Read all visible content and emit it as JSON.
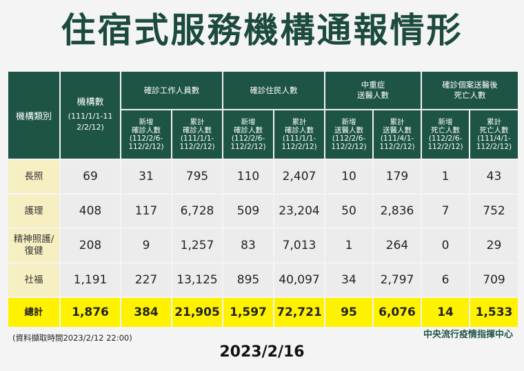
{
  "title": "住宿式服務機構通報情形",
  "header": {
    "category": "機構類別",
    "count_title": "機構數",
    "count_range": "(111/1/1-112/2/12)",
    "groups": [
      "確診工作人員數",
      "確診住民人數",
      "中重症\n送醫人數",
      "確診個案送醫後\n死亡人數"
    ],
    "subs": [
      "新增\n確診人數\n(112/2/6-\n112/2/12)",
      "累計\n確診人數\n(111/1/1-\n112/2/12)",
      "新增\n確診人數\n(112/2/6-\n112/2/12)",
      "累計\n確診人數\n(111/1/1-\n112/2/12)",
      "新增\n送醫人數\n(112/2/6-\n112/2/12)",
      "累計\n送醫人數\n(111/4/1-\n112/2/12)",
      "新增\n死亡人數\n(112/2/6-\n112/2/12)",
      "累計\n死亡人數\n(111/4/1-\n112/2/12)"
    ]
  },
  "rows": [
    {
      "label": "長照",
      "values": [
        "69",
        "31",
        "795",
        "110",
        "2,407",
        "10",
        "179",
        "1",
        "43"
      ]
    },
    {
      "label": "護理",
      "values": [
        "408",
        "117",
        "6,728",
        "509",
        "23,204",
        "50",
        "2,836",
        "7",
        "752"
      ]
    },
    {
      "label": "精神照護/\n復健",
      "values": [
        "208",
        "9",
        "1,257",
        "83",
        "7,013",
        "1",
        "264",
        "0",
        "29"
      ]
    },
    {
      "label": "社福",
      "values": [
        "1,191",
        "227",
        "13,125",
        "895",
        "40,097",
        "34",
        "2,797",
        "6",
        "709"
      ]
    }
  ],
  "total": {
    "label": "總計",
    "values": [
      "1,876",
      "384",
      "21,905",
      "1,597",
      "72,721",
      "95",
      "6,076",
      "14",
      "1,533"
    ]
  },
  "note": "(資料擷取時間2023/2/12 22:00)",
  "agency": "中央流行疫情指揮中心",
  "date": "2023/2/16"
}
